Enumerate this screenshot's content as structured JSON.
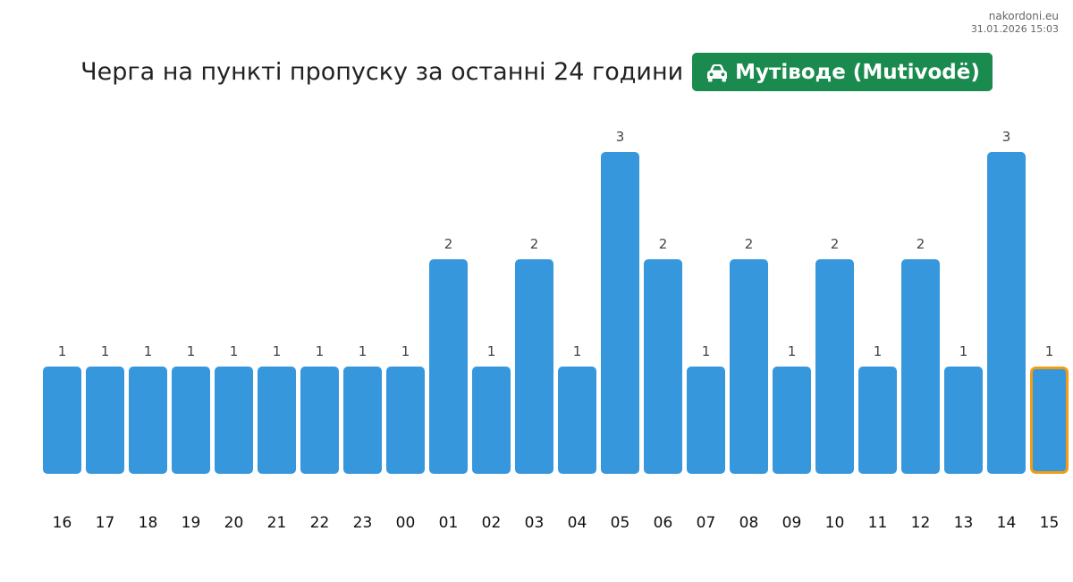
{
  "source": {
    "site": "nakordoni.eu",
    "timestamp": "31.01.2026 15:03"
  },
  "header": {
    "title": "Черга на пункті пропуску за останні 24 години",
    "badge_label": "Мутіводе (Mutivodë)",
    "badge_icon": "car-icon",
    "badge_color": "#1a8a4e"
  },
  "chart_data": {
    "type": "bar",
    "categories": [
      "16",
      "17",
      "18",
      "19",
      "20",
      "21",
      "22",
      "23",
      "00",
      "01",
      "02",
      "03",
      "04",
      "05",
      "06",
      "07",
      "08",
      "09",
      "10",
      "11",
      "12",
      "13",
      "14",
      "15"
    ],
    "values": [
      1,
      1,
      1,
      1,
      1,
      1,
      1,
      1,
      1,
      2,
      1,
      2,
      1,
      3,
      2,
      1,
      2,
      1,
      2,
      1,
      2,
      1,
      3,
      1
    ],
    "ylim": [
      0,
      3
    ],
    "highlight_index": 23,
    "bar_color": "#3797dc",
    "highlight_border_color": "#f39c12",
    "grid": false,
    "legend": "none"
  }
}
